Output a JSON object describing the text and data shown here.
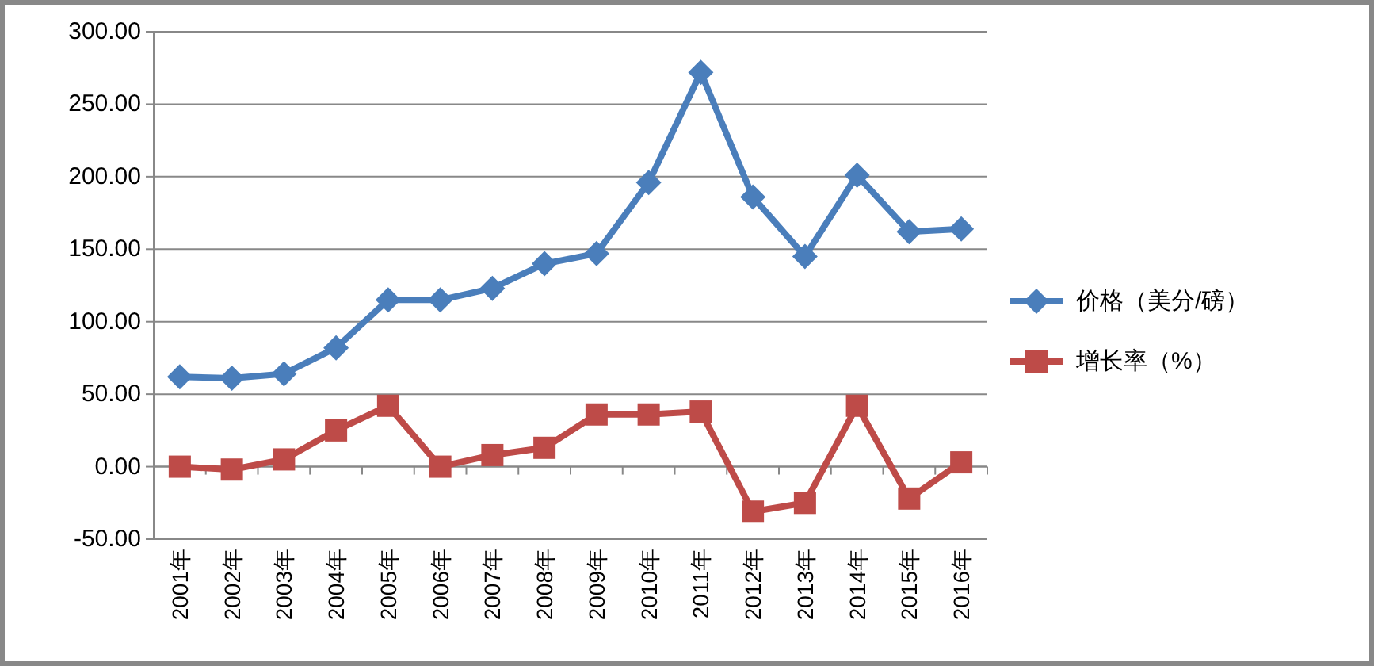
{
  "chart_data": {
    "type": "line",
    "categories": [
      "2001年",
      "2002年",
      "2003年",
      "2004年",
      "2005年",
      "2006年",
      "2007年",
      "2008年",
      "2009年",
      "2010年",
      "2011年",
      "2012年",
      "2013年",
      "2014年",
      "2015年",
      "2016年"
    ],
    "series": [
      {
        "name": "价格（美分/磅）",
        "color": "#4a7ebb",
        "marker": "diamond",
        "values": [
          62,
          61,
          64,
          82,
          115,
          115,
          123,
          140,
          147,
          196,
          272,
          186,
          145,
          201,
          162,
          164
        ]
      },
      {
        "name": "增长率（%）",
        "color": "#be4b48",
        "marker": "square",
        "values": [
          0,
          -2,
          5,
          25,
          42,
          0,
          8,
          13,
          36,
          36,
          38,
          -31,
          -25,
          42,
          -22,
          3
        ]
      }
    ],
    "ylim": [
      -50,
      300
    ],
    "yticks": [
      {
        "value": -50,
        "label": "-50.00"
      },
      {
        "value": 0,
        "label": "0.00"
      },
      {
        "value": 50,
        "label": "50.00"
      },
      {
        "value": 100,
        "label": "100.00"
      },
      {
        "value": 150,
        "label": "150.00"
      },
      {
        "value": 200,
        "label": "200.00"
      },
      {
        "value": 250,
        "label": "250.00"
      },
      {
        "value": 300,
        "label": "300.00"
      }
    ],
    "grid": "y",
    "legend": "right",
    "line_style": "solid"
  }
}
